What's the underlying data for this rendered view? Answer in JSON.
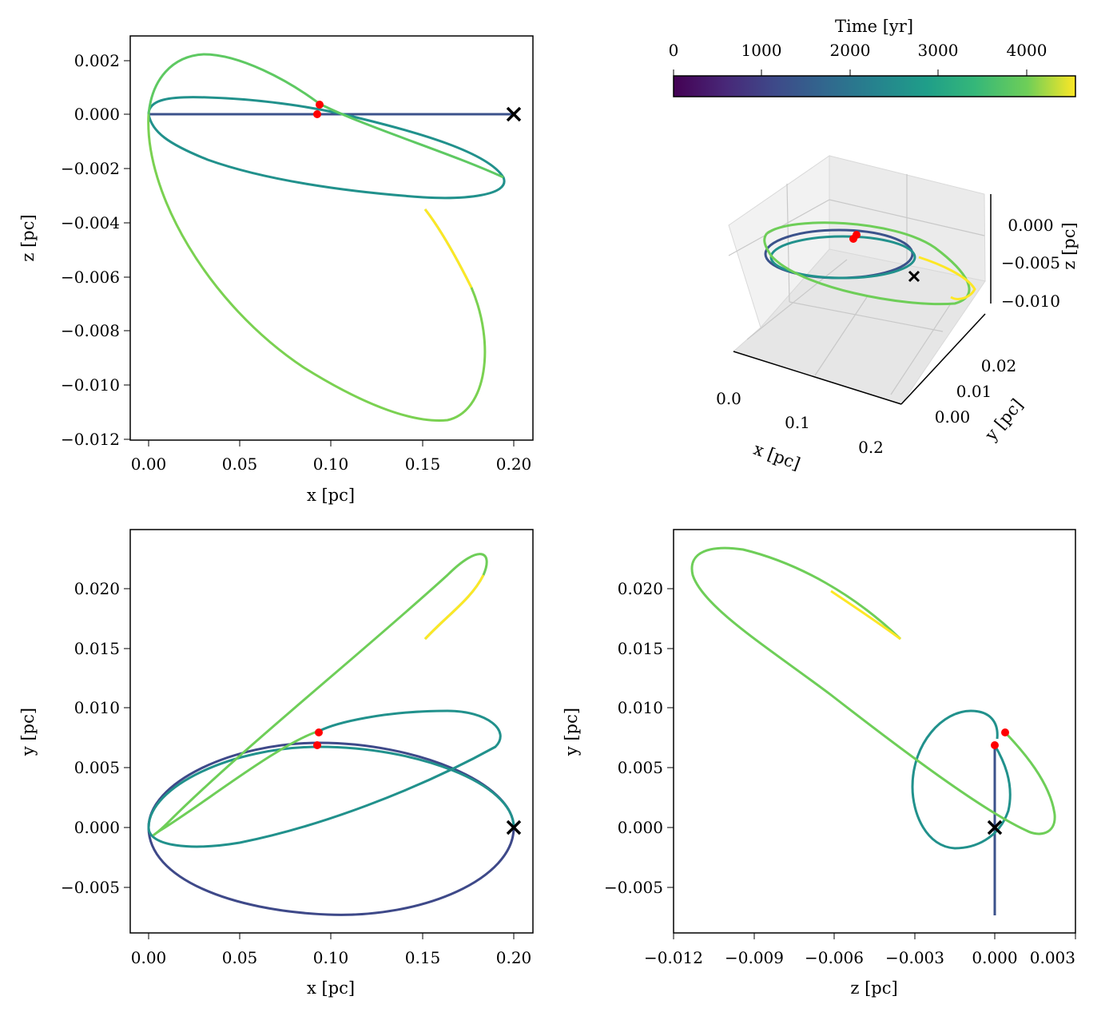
{
  "colorbar": {
    "label": "Time [yr]",
    "ticks": [
      "0",
      "1000",
      "2000",
      "3000",
      "4000"
    ],
    "tick_values": [
      0,
      1000,
      2000,
      3000,
      4000
    ],
    "range": [
      0,
      4560
    ],
    "colormap": "viridis"
  },
  "colors": {
    "marker_red": "#ff0000",
    "marker_black": "#000000"
  },
  "chart_data": [
    {
      "type": "line",
      "panel": "top-left",
      "xlabel": "x [pc]",
      "ylabel": "z [pc]",
      "xlim": [
        -0.01,
        0.21
      ],
      "ylim": [
        -0.012,
        0.0029
      ],
      "xticks": [
        "0.00",
        "0.05",
        "0.10",
        "0.15",
        "0.20"
      ],
      "yticks": [
        "0.002",
        "0.000",
        "−0.002",
        "−0.004",
        "−0.006",
        "−0.008",
        "−0.010",
        "−0.012"
      ],
      "series": [
        {
          "label_note": "trajectory",
          "x": [
            0.2,
            0.15,
            0.1,
            0.05,
            0.0,
            0.05,
            0.1,
            0.15,
            0.2
          ],
          "y": [
            0.0,
            0.0,
            0.0,
            0.0,
            0.0,
            0.0,
            0.0,
            0.0,
            0.0
          ]
        }
      ],
      "markers": {
        "start_x": [
          0.2,
          0.0
        ],
        "red_points": [
          [
            0.093,
            0.0004
          ],
          [
            0.092,
            0.0
          ]
        ]
      }
    },
    {
      "type": "line",
      "panel": "bottom-left",
      "xlabel": "x [pc]",
      "ylabel": "y [pc]",
      "xlim": [
        -0.01,
        0.21
      ],
      "ylim": [
        -0.0088,
        0.0245
      ],
      "xticks": [
        "0.00",
        "0.05",
        "0.10",
        "0.15",
        "0.20"
      ],
      "yticks": [
        "0.020",
        "0.015",
        "0.010",
        "0.005",
        "0.000",
        "−0.005"
      ],
      "markers": {
        "start_x": [
          0.2,
          0.0
        ],
        "red_points": [
          [
            0.093,
            0.0079
          ],
          [
            0.092,
            0.0069
          ]
        ]
      }
    },
    {
      "type": "line",
      "panel": "bottom-right",
      "xlabel": "z [pc]",
      "ylabel": "y [pc]",
      "xlim": [
        -0.012,
        0.003
      ],
      "ylim": [
        -0.0088,
        0.0245
      ],
      "xticks": [
        "−0.012",
        "−0.009",
        "−0.006",
        "−0.003",
        "0.000",
        "0.003"
      ],
      "yticks": [
        "0.020",
        "0.015",
        "0.010",
        "0.005",
        "0.000",
        "−0.005"
      ],
      "markers": {
        "start_x": [
          0.0,
          0.0
        ],
        "red_points": [
          [
            0.0004,
            0.0079
          ],
          [
            0.0,
            0.0069
          ]
        ]
      }
    },
    {
      "type": "line",
      "panel": "3d",
      "xlabel": "x [pc]",
      "ylabel": "y [pc]",
      "zlabel": "z [pc]",
      "xticks": [
        "0.0",
        "0.1",
        "0.2"
      ],
      "yticks": [
        "0.00",
        "0.01",
        "0.02"
      ],
      "zticks": [
        "0.000",
        "−0.005",
        "−0.010"
      ]
    }
  ]
}
